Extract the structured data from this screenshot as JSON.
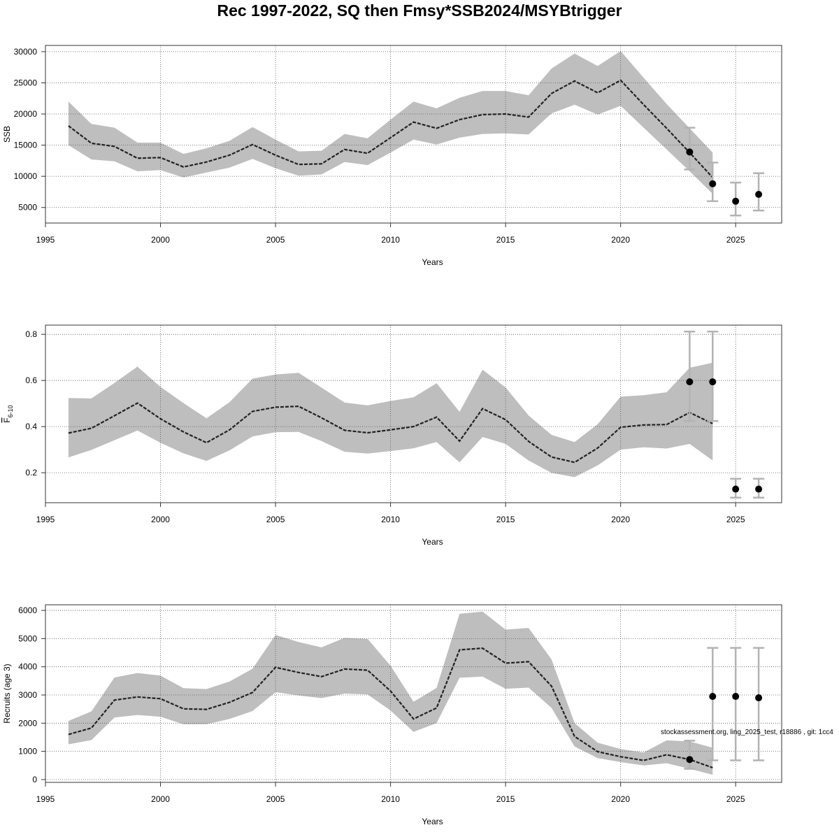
{
  "title": "Rec 1997-2022, SQ then Fmsy*SSB2024/MSYBtrigger",
  "footnote": "stockassessment.org, ling_2025_test, r18886 , git: 1cc4",
  "colors": {
    "band": "#bebebe",
    "line": "#222222",
    "errorbar": "#b3b3b3",
    "point": "#000000",
    "grid": "#555555"
  },
  "chart_data": [
    {
      "type": "line",
      "ylabel": "SSB",
      "xlabel": "Years",
      "xlim": [
        1995,
        2027
      ],
      "ylim": [
        2500,
        31000
      ],
      "xticks": [
        1995,
        2000,
        2005,
        2010,
        2015,
        2020,
        2025
      ],
      "yticks": [
        5000,
        10000,
        15000,
        20000,
        25000,
        30000
      ],
      "grid": true,
      "x": [
        1996,
        1997,
        1998,
        1999,
        2000,
        2001,
        2002,
        2003,
        2004,
        2005,
        2006,
        2007,
        2008,
        2009,
        2010,
        2011,
        2012,
        2013,
        2014,
        2015,
        2016,
        2017,
        2018,
        2019,
        2020,
        2021,
        2022,
        2023,
        2024
      ],
      "estimate": [
        18100,
        15300,
        14800,
        12900,
        13000,
        11500,
        12300,
        13400,
        15100,
        13400,
        11900,
        12000,
        14300,
        13700,
        16200,
        18700,
        17700,
        19100,
        19900,
        20000,
        19500,
        23300,
        25300,
        23400,
        25400,
        21500,
        17700,
        13800,
        9800
      ],
      "lower": [
        15000,
        12700,
        12400,
        10800,
        11000,
        9800,
        10600,
        11400,
        12800,
        11300,
        10100,
        10300,
        12300,
        11800,
        13800,
        15900,
        15100,
        16200,
        16800,
        16900,
        16700,
        20100,
        21500,
        19900,
        21300,
        17800,
        14300,
        10800,
        7200
      ],
      "upper": [
        22000,
        18400,
        17800,
        15400,
        15400,
        13600,
        14500,
        15700,
        17900,
        15900,
        14000,
        14100,
        16800,
        16100,
        19100,
        22000,
        20900,
        22600,
        23700,
        23700,
        23000,
        27300,
        29700,
        27700,
        30100,
        25800,
        21600,
        17700,
        13800
      ],
      "forecast": [
        {
          "year": 2023,
          "median": 13900,
          "low": 11100,
          "high": 17800
        },
        {
          "year": 2024,
          "median": 8800,
          "low": 6000,
          "high": 12200
        },
        {
          "year": 2025,
          "median": 6000,
          "low": 3700,
          "high": 9000
        },
        {
          "year": 2026,
          "median": 7100,
          "low": 4500,
          "high": 10500
        }
      ]
    },
    {
      "type": "line",
      "ylabel": "F",
      "ylabel_sub": "6-10",
      "xlabel": "Years",
      "xlim": [
        1995,
        2027
      ],
      "ylim": [
        0.07,
        0.84
      ],
      "xticks": [
        1995,
        2000,
        2005,
        2010,
        2015,
        2020,
        2025
      ],
      "yticks": [
        0.2,
        0.4,
        0.6,
        0.8
      ],
      "ytick_labels": [
        "0.2",
        "0.4",
        "0.6",
        "0.8"
      ],
      "grid": true,
      "x": [
        1996,
        1997,
        1998,
        1999,
        2000,
        2001,
        2002,
        2003,
        2004,
        2005,
        2006,
        2007,
        2008,
        2009,
        2010,
        2011,
        2012,
        2013,
        2014,
        2015,
        2016,
        2017,
        2018,
        2019,
        2020,
        2021,
        2022,
        2023,
        2024
      ],
      "estimate": [
        0.372,
        0.393,
        0.447,
        0.502,
        0.434,
        0.377,
        0.33,
        0.386,
        0.466,
        0.484,
        0.488,
        0.438,
        0.384,
        0.373,
        0.386,
        0.4,
        0.441,
        0.337,
        0.478,
        0.43,
        0.336,
        0.268,
        0.245,
        0.307,
        0.397,
        0.407,
        0.409,
        0.461,
        0.413
      ],
      "lower": [
        0.266,
        0.299,
        0.341,
        0.383,
        0.33,
        0.284,
        0.251,
        0.297,
        0.357,
        0.376,
        0.377,
        0.337,
        0.291,
        0.283,
        0.294,
        0.306,
        0.333,
        0.245,
        0.355,
        0.325,
        0.253,
        0.199,
        0.181,
        0.232,
        0.3,
        0.31,
        0.305,
        0.325,
        0.253
      ],
      "upper": [
        0.524,
        0.522,
        0.589,
        0.66,
        0.572,
        0.502,
        0.436,
        0.506,
        0.608,
        0.626,
        0.633,
        0.569,
        0.504,
        0.492,
        0.511,
        0.527,
        0.588,
        0.464,
        0.647,
        0.57,
        0.448,
        0.364,
        0.333,
        0.41,
        0.53,
        0.536,
        0.549,
        0.655,
        0.677
      ],
      "forecast": [
        {
          "year": 2023,
          "median": 0.594,
          "low": 0.424,
          "high": 0.812
        },
        {
          "year": 2024,
          "median": 0.594,
          "low": 0.424,
          "high": 0.812
        },
        {
          "year": 2025,
          "median": 0.129,
          "low": 0.092,
          "high": 0.174
        },
        {
          "year": 2026,
          "median": 0.129,
          "low": 0.092,
          "high": 0.174
        }
      ]
    },
    {
      "type": "line",
      "ylabel": "Recruits (age 3)",
      "xlabel": "Years",
      "xlim": [
        1995,
        2027
      ],
      "ylim": [
        -100,
        6200
      ],
      "xticks": [
        1995,
        2000,
        2005,
        2010,
        2015,
        2020,
        2025
      ],
      "yticks": [
        0,
        1000,
        2000,
        3000,
        4000,
        5000,
        6000
      ],
      "grid": true,
      "x": [
        1996,
        1997,
        1998,
        1999,
        2000,
        2001,
        2002,
        2003,
        2004,
        2005,
        2006,
        2007,
        2008,
        2009,
        2010,
        2011,
        2012,
        2013,
        2014,
        2015,
        2016,
        2017,
        2018,
        2019,
        2020,
        2021,
        2022,
        2023,
        2024
      ],
      "estimate": [
        1600,
        1830,
        2820,
        2930,
        2870,
        2510,
        2490,
        2740,
        3090,
        3980,
        3800,
        3650,
        3920,
        3880,
        3140,
        2150,
        2540,
        4600,
        4660,
        4130,
        4180,
        3310,
        1530,
        990,
        810,
        680,
        880,
        710,
        420
      ],
      "lower": [
        1250,
        1400,
        2200,
        2290,
        2230,
        1960,
        1960,
        2150,
        2430,
        3100,
        2980,
        2890,
        3050,
        3020,
        2450,
        1690,
        2000,
        3610,
        3650,
        3220,
        3260,
        2540,
        1170,
        760,
        620,
        500,
        580,
        380,
        170
      ],
      "upper": [
        2080,
        2420,
        3620,
        3780,
        3690,
        3240,
        3210,
        3480,
        3930,
        5130,
        4880,
        4690,
        5030,
        4990,
        4040,
        2760,
        3250,
        5880,
        5960,
        5320,
        5380,
        4260,
        2000,
        1310,
        1080,
        960,
        1390,
        1350,
        1130
      ],
      "forecast": [
        {
          "year": 2023,
          "median": 710,
          "low": 380,
          "high": 1380
        },
        {
          "year": 2024,
          "median": 2950,
          "low": 680,
          "high": 4670
        },
        {
          "year": 2025,
          "median": 2950,
          "low": 680,
          "high": 4670
        },
        {
          "year": 2026,
          "median": 2900,
          "low": 680,
          "high": 4670
        }
      ]
    }
  ]
}
